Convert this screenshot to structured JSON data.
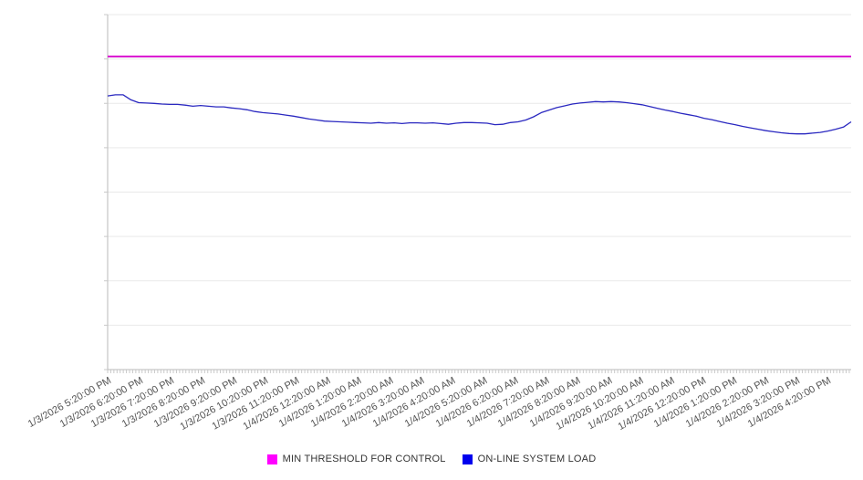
{
  "chart_data": {
    "type": "line",
    "title": "",
    "xlabel": "",
    "ylabel": "",
    "legend_position": "bottom-center",
    "grid": "horizontal",
    "x_axis": {
      "tick_labels": [
        "1/3/2026 5:20:00 PM",
        "1/3/2026 6:20:00 PM",
        "1/3/2026 7:20:00 PM",
        "1/3/2026 8:20:00 PM",
        "1/3/2026 9:20:00 PM",
        "1/3/2026 10:20:00 PM",
        "1/3/2026 11:20:00 PM",
        "1/4/2026 12:20:00 AM",
        "1/4/2026 1:20:00 AM",
        "1/4/2026 2:20:00 AM",
        "1/4/2026 3:20:00 AM",
        "1/4/2026 4:20:00 AM",
        "1/4/2026 5:20:00 AM",
        "1/4/2026 6:20:00 AM",
        "1/4/2026 7:20:00 AM",
        "1/4/2026 8:20:00 AM",
        "1/4/2026 9:20:00 AM",
        "1/4/2026 10:20:00 AM",
        "1/4/2026 11:20:00 AM",
        "1/4/2026 12:20:00 PM",
        "1/4/2026 1:20:00 PM",
        "1/4/2026 2:20:00 PM",
        "1/4/2026 3:20:00 PM",
        "1/4/2026 4:20:00 PM"
      ],
      "tick_interval": "1 hour",
      "minor_ticks": true
    },
    "y_axis": {
      "labels_visible": false,
      "gridline_intervals": 8,
      "assumed_range": [
        0,
        100
      ],
      "note": "no numeric y tick labels are rendered in the chart; values below are percent of plot height"
    },
    "series": [
      {
        "name": "MIN THRESHOLD FOR CONTROL",
        "type": "threshold",
        "line_color": "#d912d0",
        "swatch_color": "#ff00ff",
        "value": 88.2
      },
      {
        "name": "ON-LINE SYSTEM LOAD",
        "type": "line",
        "line_color": "#2a28c0",
        "swatch_color": "#0000ee",
        "values": [
          77.1,
          77.4,
          77.4,
          76.0,
          75.2,
          75.1,
          75.0,
          74.8,
          74.7,
          74.7,
          74.5,
          74.2,
          74.4,
          74.2,
          74.0,
          74.0,
          73.7,
          73.5,
          73.2,
          72.7,
          72.4,
          72.2,
          72.0,
          71.7,
          71.4,
          71.0,
          70.6,
          70.3,
          70.0,
          69.9,
          69.8,
          69.7,
          69.6,
          69.5,
          69.4,
          69.6,
          69.4,
          69.5,
          69.3,
          69.5,
          69.5,
          69.4,
          69.5,
          69.3,
          69.1,
          69.4,
          69.6,
          69.6,
          69.5,
          69.4,
          69.0,
          69.1,
          69.6,
          69.8,
          70.3,
          71.2,
          72.4,
          73.1,
          73.8,
          74.3,
          74.8,
          75.1,
          75.3,
          75.5,
          75.4,
          75.5,
          75.4,
          75.2,
          74.9,
          74.6,
          74.1,
          73.6,
          73.1,
          72.7,
          72.2,
          71.8,
          71.4,
          70.8,
          70.4,
          69.9,
          69.4,
          69.0,
          68.5,
          68.1,
          67.7,
          67.3,
          67.0,
          66.7,
          66.5,
          66.4,
          66.4,
          66.6,
          66.8,
          67.2,
          67.7,
          68.3,
          69.8
        ]
      }
    ],
    "colors": {
      "gridline": "#e9e9e9",
      "axis_line": "#b9b9b9",
      "minor_tick": "#c9c9c9",
      "tick_label": "#545454",
      "legend_text": "#333333",
      "background": "#ffffff"
    }
  }
}
